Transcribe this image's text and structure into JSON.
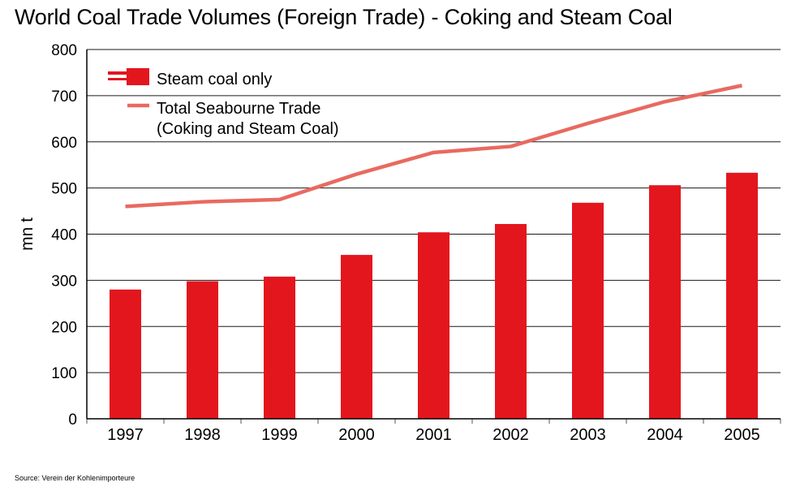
{
  "chart_data": {
    "type": "bar",
    "title": "World Coal Trade Volumes (Foreign Trade) - Coking and Steam Coal",
    "ylabel": "mn t",
    "xlabel": "",
    "ylim": [
      0,
      800
    ],
    "yticks": [
      0,
      100,
      200,
      300,
      400,
      500,
      600,
      700,
      800
    ],
    "grid": true,
    "legend_position": "top-left",
    "categories": [
      "1997",
      "1998",
      "1999",
      "2000",
      "2001",
      "2002",
      "2003",
      "2004",
      "2005"
    ],
    "series": [
      {
        "name": "Steam coal only",
        "type": "bar",
        "color": "#e3161e",
        "values": [
          280,
          298,
          308,
          355,
          404,
          422,
          468,
          506,
          533
        ]
      },
      {
        "name": "Total Seabourne Trade (Coking and Steam Coal)",
        "name_lines": [
          "Total Seabourne Trade",
          "(Coking and Steam Coal)"
        ],
        "type": "line",
        "color": "#e86a60",
        "values": [
          460,
          470,
          475,
          530,
          577,
          590,
          640,
          687,
          722
        ]
      }
    ],
    "source": "Source: Verein der Kohlenimporteure"
  }
}
